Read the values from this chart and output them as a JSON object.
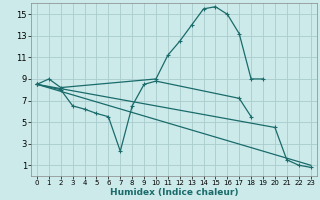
{
  "xlabel": "Humidex (Indice chaleur)",
  "background_color": "#cdeaea",
  "grid_color": "#b8d8d8",
  "line_color": "#1a6b6b",
  "xlim": [
    -0.5,
    23.5
  ],
  "ylim": [
    0,
    16
  ],
  "xticks": [
    0,
    1,
    2,
    3,
    4,
    5,
    6,
    7,
    8,
    9,
    10,
    11,
    12,
    13,
    14,
    15,
    16,
    17,
    18,
    19,
    20,
    21,
    22,
    23
  ],
  "yticks": [
    1,
    3,
    5,
    7,
    9,
    11,
    13,
    15
  ],
  "line1_x": [
    0,
    1,
    2,
    10,
    11,
    12,
    13,
    14,
    15,
    16,
    17,
    18,
    19
  ],
  "line1_y": [
    8.5,
    9.0,
    8.2,
    9.0,
    11.2,
    12.5,
    14.0,
    15.5,
    15.7,
    15.0,
    13.2,
    9.0,
    9.0
  ],
  "line2_x": [
    0,
    2,
    3,
    4,
    5,
    6,
    7,
    8,
    9,
    10,
    17,
    18
  ],
  "line2_y": [
    8.5,
    8.0,
    6.5,
    6.2,
    5.8,
    5.5,
    2.3,
    6.5,
    8.5,
    8.8,
    7.2,
    5.5
  ],
  "line3_x": [
    0,
    23
  ],
  "line3_y": [
    8.5,
    1.0
  ],
  "line4_x": [
    0,
    20,
    21,
    22,
    23
  ],
  "line4_y": [
    8.5,
    4.5,
    1.5,
    1.0,
    0.8
  ]
}
